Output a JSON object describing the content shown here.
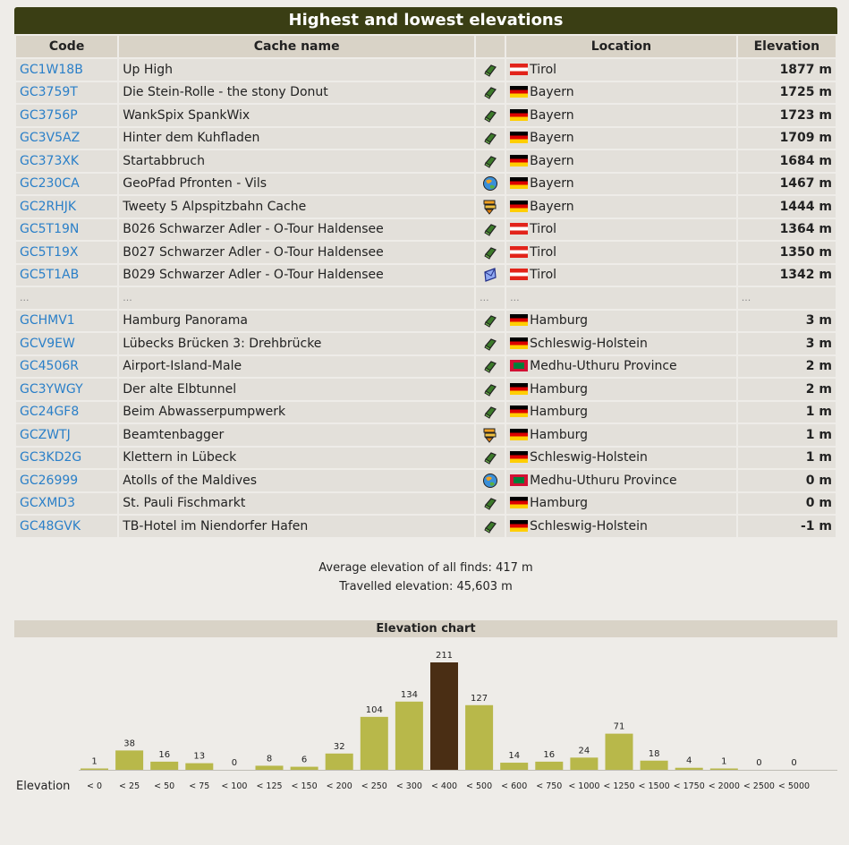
{
  "title": "Highest and lowest elevations",
  "headers": {
    "code": "Code",
    "name": "Cache name",
    "type": "",
    "location": "Location",
    "elevation": "Elevation"
  },
  "rows": [
    {
      "code": "GC1W18B",
      "name": "Up High",
      "icon": "traditional-cache-icon",
      "flag": "at",
      "location": "Tirol",
      "elevation": "1877 m"
    },
    {
      "code": "GC3759T",
      "name": "Die Stein-Rolle - the stony Donut",
      "icon": "traditional-cache-icon",
      "flag": "de",
      "location": "Bayern",
      "elevation": "1725 m"
    },
    {
      "code": "GC3756P",
      "name": "WankSpix SpankWix",
      "icon": "traditional-cache-icon",
      "flag": "de",
      "location": "Bayern",
      "elevation": "1723 m"
    },
    {
      "code": "GC3V5AZ",
      "name": "Hinter dem Kuhfladen",
      "icon": "traditional-cache-icon",
      "flag": "de",
      "location": "Bayern",
      "elevation": "1709 m"
    },
    {
      "code": "GC373XK",
      "name": "Startabbruch",
      "icon": "traditional-cache-icon",
      "flag": "de",
      "location": "Bayern",
      "elevation": "1684 m"
    },
    {
      "code": "GC230CA",
      "name": "GeoPfad Pfronten - Vils",
      "icon": "earthcache-icon",
      "flag": "de",
      "location": "Bayern",
      "elevation": "1467 m"
    },
    {
      "code": "GC2RHJK",
      "name": "Tweety 5 Alpspitzbahn Cache",
      "icon": "multi-cache-icon",
      "flag": "de",
      "location": "Bayern",
      "elevation": "1444 m"
    },
    {
      "code": "GC5T19N",
      "name": "B026 Schwarzer Adler - O-Tour Haldensee",
      "icon": "traditional-cache-icon",
      "flag": "at",
      "location": "Tirol",
      "elevation": "1364 m"
    },
    {
      "code": "GC5T19X",
      "name": "B027 Schwarzer Adler - O-Tour Haldensee",
      "icon": "traditional-cache-icon",
      "flag": "at",
      "location": "Tirol",
      "elevation": "1350 m"
    },
    {
      "code": "GC5T1AB",
      "name": "B029 Schwarzer Adler - O-Tour Haldensee",
      "icon": "letterbox-cache-icon",
      "flag": "at",
      "location": "Tirol",
      "elevation": "1342 m"
    },
    {
      "gap": true,
      "code": "...",
      "name": "...",
      "icon": "",
      "flag": "",
      "location": "...",
      "elevation": "...",
      "type_text": "..."
    },
    {
      "code": "GCHMV1",
      "name": "Hamburg Panorama",
      "icon": "traditional-cache-icon",
      "flag": "de",
      "location": "Hamburg",
      "elevation": "3 m"
    },
    {
      "code": "GCV9EW",
      "name": "Lübecks Brücken 3: Drehbrücke",
      "icon": "traditional-cache-icon",
      "flag": "de",
      "location": "Schleswig-Holstein",
      "elevation": "3 m"
    },
    {
      "code": "GC4506R",
      "name": "Airport-Island-Male",
      "icon": "traditional-cache-icon",
      "flag": "mv",
      "location": "Medhu-Uthuru Province",
      "elevation": "2 m"
    },
    {
      "code": "GC3YWGY",
      "name": "Der alte Elbtunnel",
      "icon": "traditional-cache-icon",
      "flag": "de",
      "location": "Hamburg",
      "elevation": "2 m"
    },
    {
      "code": "GC24GF8",
      "name": "Beim Abwasserpumpwerk",
      "icon": "traditional-cache-icon",
      "flag": "de",
      "location": "Hamburg",
      "elevation": "1 m"
    },
    {
      "code": "GCZWTJ",
      "name": "Beamtenbagger",
      "icon": "multi-cache-icon",
      "flag": "de",
      "location": "Hamburg",
      "elevation": "1 m"
    },
    {
      "code": "GC3KD2G",
      "name": "Klettern in Lübeck",
      "icon": "traditional-cache-icon",
      "flag": "de",
      "location": "Schleswig-Holstein",
      "elevation": "1 m"
    },
    {
      "code": "GC26999",
      "name": "Atolls of the Maldives",
      "icon": "earthcache-icon",
      "flag": "mv",
      "location": "Medhu-Uthuru Province",
      "elevation": "0 m"
    },
    {
      "code": "GCXMD3",
      "name": "St. Pauli Fischmarkt",
      "icon": "traditional-cache-icon",
      "flag": "de",
      "location": "Hamburg",
      "elevation": "0 m"
    },
    {
      "code": "GC48GVK",
      "name": "TB-Hotel im Niendorfer Hafen",
      "icon": "traditional-cache-icon",
      "flag": "de",
      "location": "Schleswig-Holstein",
      "elevation": "-1 m"
    }
  ],
  "summary": {
    "average": "Average elevation of all finds: 417 m",
    "travelled": "Travelled elevation: 45,603 m"
  },
  "colors": {
    "bar": "#b8b84a",
    "bar_highlight": "#4a2e14",
    "header": "#3a3e14"
  },
  "chart_data": {
    "type": "bar",
    "title": "Elevation chart",
    "xlabel": "Elevation",
    "categories": [
      "< 0",
      "< 25",
      "< 50",
      "< 75",
      "< 100",
      "< 125",
      "< 150",
      "< 200",
      "< 250",
      "< 300",
      "< 400",
      "< 500",
      "< 600",
      "< 750",
      "< 1000",
      "< 1250",
      "< 1500",
      "< 1750",
      "< 2000",
      "< 2500",
      "< 5000"
    ],
    "values": [
      1,
      38,
      16,
      13,
      0,
      8,
      6,
      32,
      104,
      134,
      211,
      127,
      14,
      16,
      24,
      71,
      18,
      4,
      1,
      0,
      0
    ],
    "highlight_category": "< 400"
  }
}
